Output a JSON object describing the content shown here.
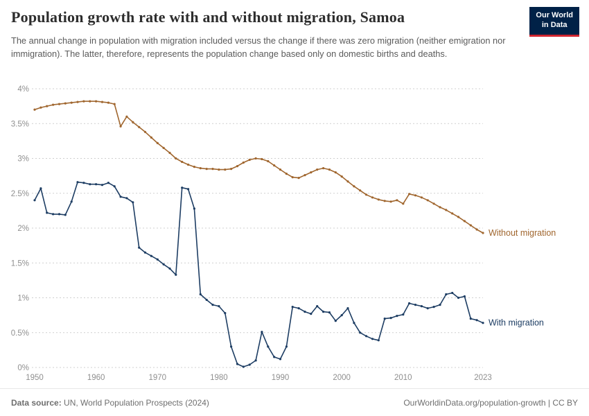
{
  "header": {
    "logo": {
      "line1": "Our World",
      "line2": "in Data"
    }
  },
  "chart_data": {
    "type": "line",
    "title": "Population growth rate with and without migration, Samoa",
    "subtitle": "The annual change in population with migration included versus the change if there was zero migration (neither emigration nor immigration). The latter, therefore, represents the population change based only on domestic births and deaths.",
    "x": [
      1950,
      1951,
      1952,
      1953,
      1954,
      1955,
      1956,
      1957,
      1958,
      1959,
      1960,
      1961,
      1962,
      1963,
      1964,
      1965,
      1966,
      1967,
      1968,
      1969,
      1970,
      1971,
      1972,
      1973,
      1974,
      1975,
      1976,
      1977,
      1978,
      1979,
      1980,
      1981,
      1982,
      1983,
      1984,
      1985,
      1986,
      1987,
      1988,
      1989,
      1990,
      1991,
      1992,
      1993,
      1994,
      1995,
      1996,
      1997,
      1998,
      1999,
      2000,
      2001,
      2002,
      2003,
      2004,
      2005,
      2006,
      2007,
      2008,
      2009,
      2010,
      2011,
      2012,
      2013,
      2014,
      2015,
      2016,
      2017,
      2018,
      2019,
      2020,
      2021,
      2022,
      2023
    ],
    "series": [
      {
        "name": "Without migration",
        "color": "#a0662e",
        "values": [
          3.7,
          3.73,
          3.75,
          3.77,
          3.78,
          3.79,
          3.8,
          3.81,
          3.82,
          3.82,
          3.82,
          3.81,
          3.8,
          3.78,
          3.46,
          3.6,
          3.52,
          3.45,
          3.38,
          3.3,
          3.22,
          3.15,
          3.08,
          3.0,
          2.95,
          2.91,
          2.88,
          2.86,
          2.85,
          2.85,
          2.84,
          2.84,
          2.85,
          2.89,
          2.94,
          2.98,
          3.0,
          2.99,
          2.96,
          2.9,
          2.84,
          2.78,
          2.73,
          2.72,
          2.76,
          2.8,
          2.84,
          2.86,
          2.84,
          2.8,
          2.74,
          2.67,
          2.6,
          2.54,
          2.48,
          2.44,
          2.41,
          2.39,
          2.38,
          2.4,
          2.35,
          2.49,
          2.47,
          2.44,
          2.4,
          2.35,
          2.3,
          2.26,
          2.21,
          2.16,
          2.1,
          2.04,
          1.98,
          1.93
        ]
      },
      {
        "name": "With migration",
        "color": "#1d3d63",
        "values": [
          2.4,
          2.57,
          2.22,
          2.2,
          2.2,
          2.19,
          2.38,
          2.66,
          2.65,
          2.63,
          2.63,
          2.62,
          2.65,
          2.6,
          2.45,
          2.43,
          2.37,
          1.72,
          1.65,
          1.6,
          1.55,
          1.48,
          1.42,
          1.33,
          2.58,
          2.56,
          2.28,
          1.05,
          0.97,
          0.9,
          0.88,
          0.78,
          0.3,
          0.05,
          0.01,
          0.04,
          0.1,
          0.51,
          0.3,
          0.15,
          0.12,
          0.3,
          0.87,
          0.85,
          0.8,
          0.77,
          0.88,
          0.8,
          0.79,
          0.67,
          0.75,
          0.85,
          0.64,
          0.5,
          0.45,
          0.41,
          0.39,
          0.7,
          0.71,
          0.74,
          0.76,
          0.92,
          0.9,
          0.88,
          0.85,
          0.87,
          0.9,
          1.05,
          1.07,
          1.0,
          1.02,
          0.7,
          0.68,
          0.64
        ]
      }
    ],
    "xlim": [
      1950,
      2023
    ],
    "ylim": [
      0,
      4
    ],
    "yticks": [
      {
        "value": 0,
        "label": "0%"
      },
      {
        "value": 0.5,
        "label": "0.5%"
      },
      {
        "value": 1,
        "label": "1%"
      },
      {
        "value": 1.5,
        "label": "1.5%"
      },
      {
        "value": 2,
        "label": "2%"
      },
      {
        "value": 2.5,
        "label": "2.5%"
      },
      {
        "value": 3,
        "label": "3%"
      },
      {
        "value": 3.5,
        "label": "3.5%"
      },
      {
        "value": 4,
        "label": "4%"
      }
    ],
    "xticks": [
      1950,
      1960,
      1970,
      1980,
      1990,
      2000,
      2010,
      2023
    ],
    "grid": "dashed-horizontal",
    "legend_position": "line-end-labels"
  },
  "footer": {
    "source_label": "Data source:",
    "source_text": " UN, World Population Prospects (2024)",
    "right_text": "OurWorldinData.org/population-growth | CC BY"
  },
  "colors": {
    "logo_navy": "#002147",
    "logo_red": "#d0252f"
  }
}
